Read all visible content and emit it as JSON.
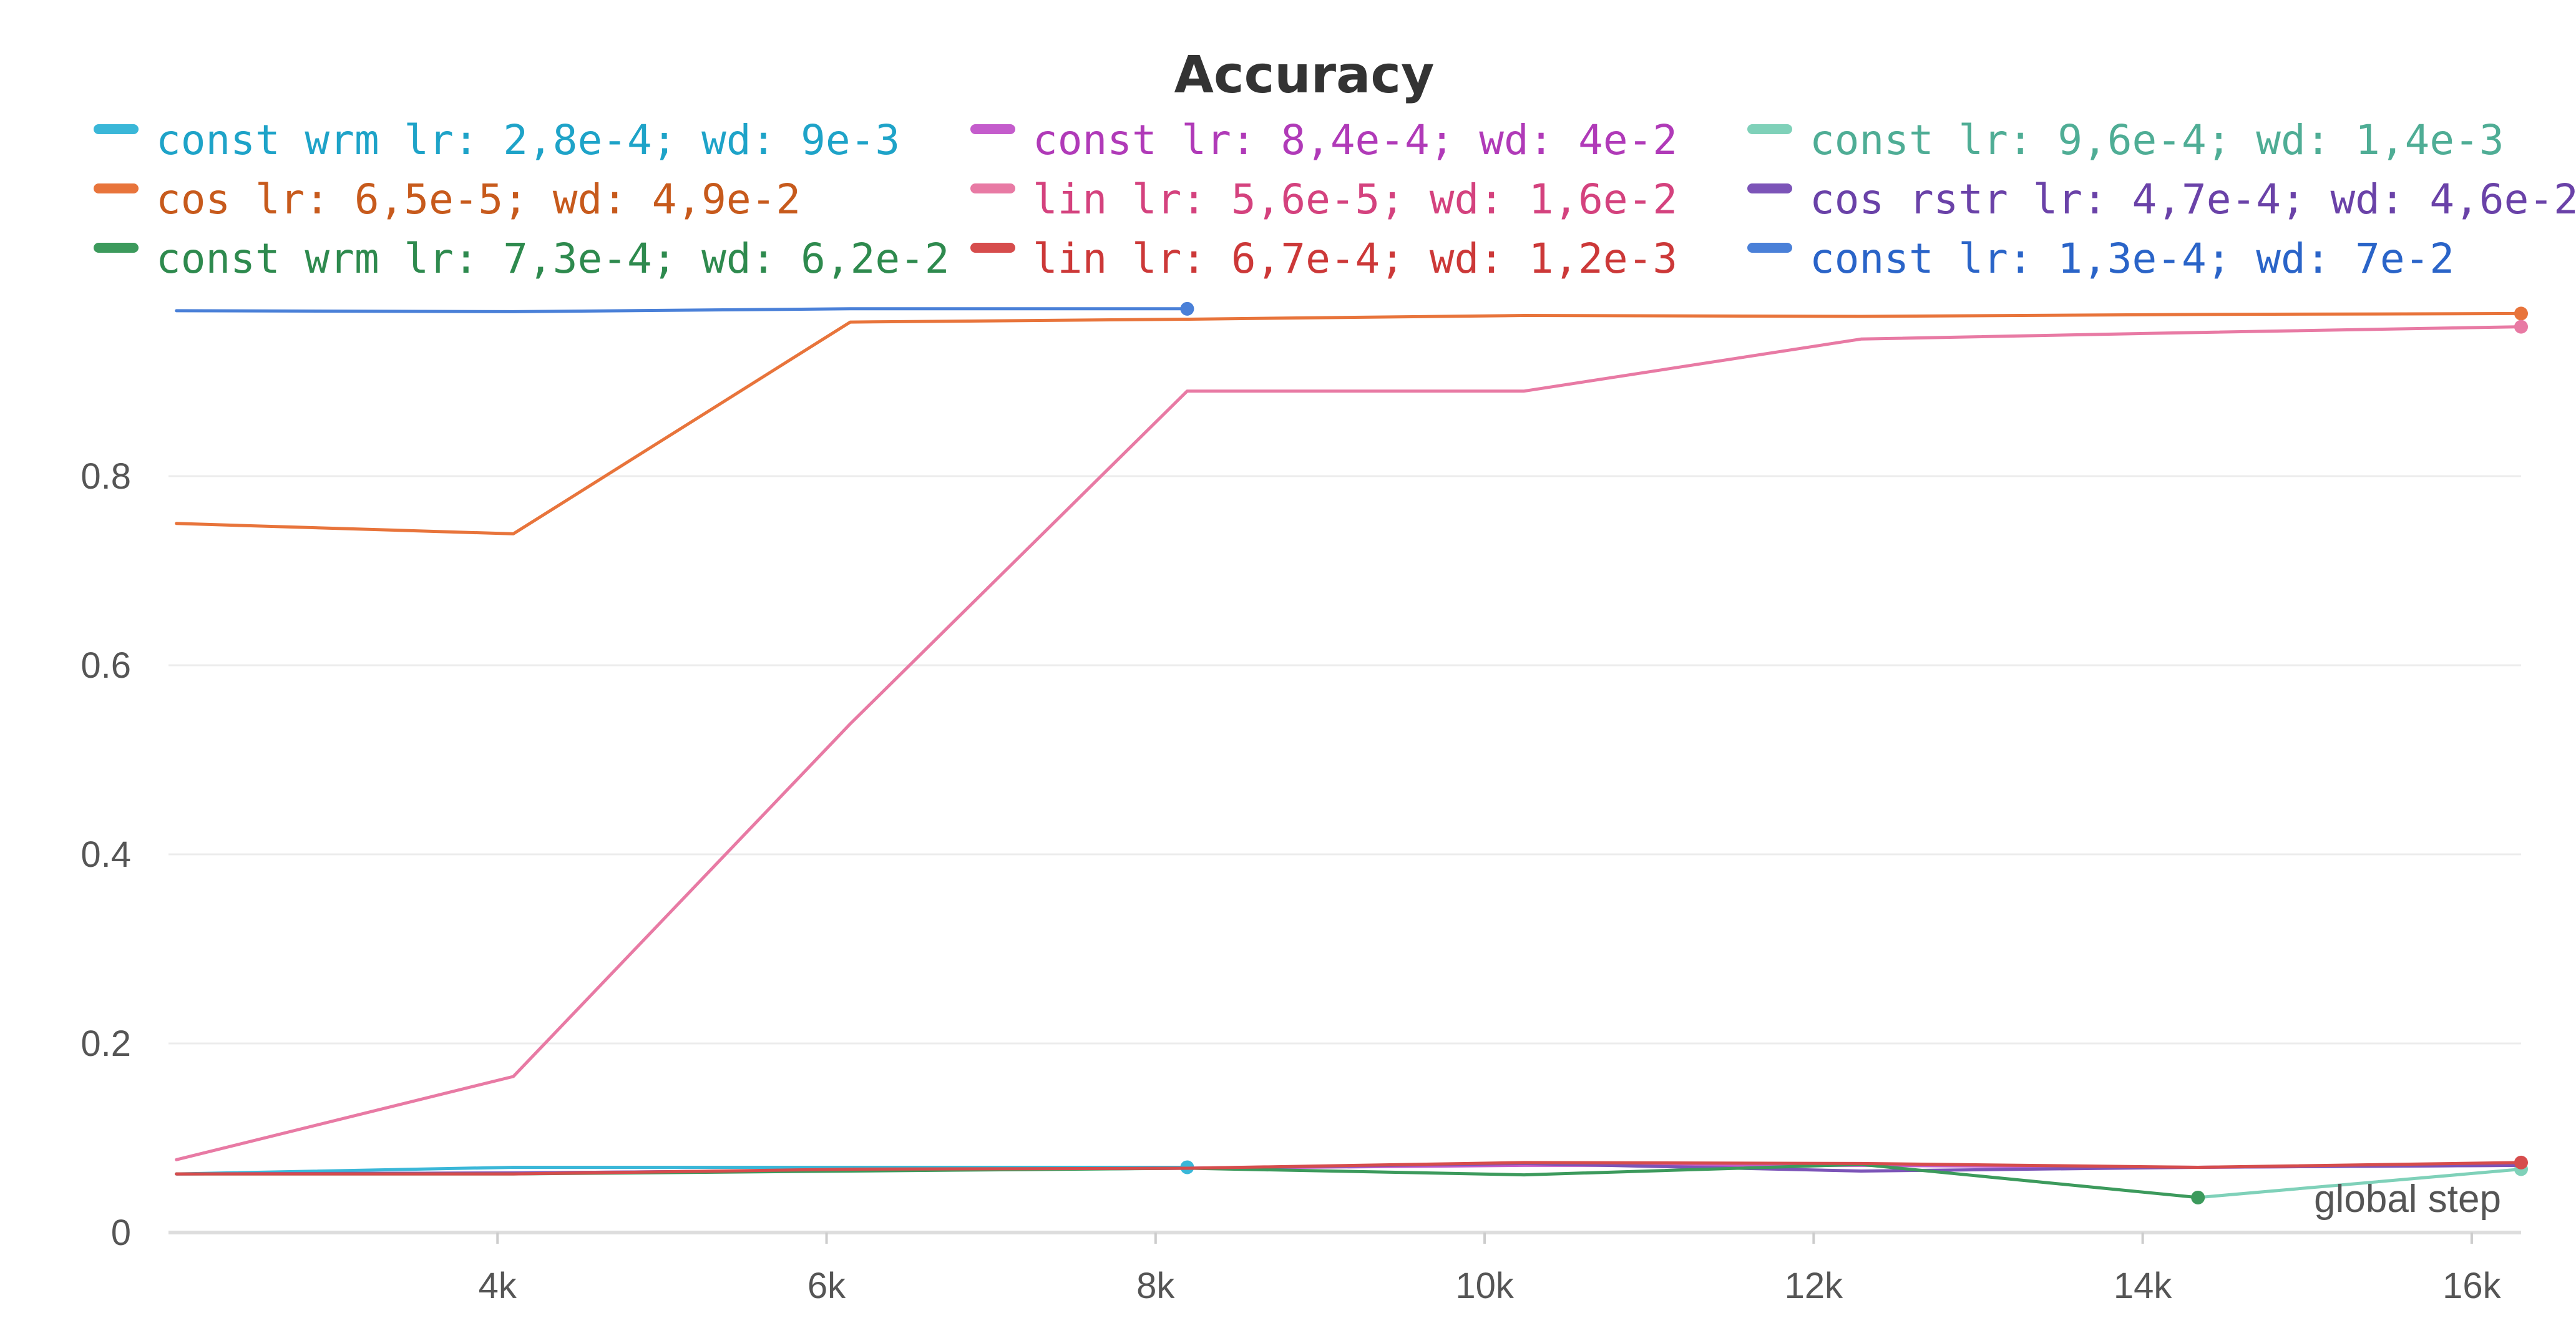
{
  "chart_data": {
    "type": "line",
    "title": "Accuracy",
    "xlabel": "global step",
    "ylabel": "",
    "xlim": [
      2000,
      16300
    ],
    "ylim": [
      0,
      1.0
    ],
    "x_ticks": [
      {
        "value": 4000,
        "label": "4k"
      },
      {
        "value": 6000,
        "label": "6k"
      },
      {
        "value": 8000,
        "label": "8k"
      },
      {
        "value": 10000,
        "label": "10k"
      },
      {
        "value": 12000,
        "label": "12k"
      },
      {
        "value": 14000,
        "label": "14k"
      },
      {
        "value": 16000,
        "label": "16k"
      }
    ],
    "y_ticks": [
      {
        "value": 0,
        "label": "0"
      },
      {
        "value": 0.2,
        "label": "0.2"
      },
      {
        "value": 0.4,
        "label": "0.4"
      },
      {
        "value": 0.6,
        "label": "0.6"
      },
      {
        "value": 0.8,
        "label": "0.8"
      }
    ],
    "grid": true,
    "legend_position": "top",
    "series": [
      {
        "name": "const wrm lr: 2,8e-4; wd: 9e-3",
        "color": "#3ab7d8",
        "text_color": "#1ea3c8",
        "x": [
          2048,
          4096,
          6144,
          8192
        ],
        "y": [
          0.062,
          0.069,
          0.069,
          0.069
        ],
        "end_marker": true
      },
      {
        "name": "const lr: 8,4e-4; wd: 4e-2",
        "color": "#c45ccc",
        "text_color": "#b03ab8",
        "x": [
          2048,
          4096,
          6144,
          8192,
          10240,
          12288,
          14336,
          16300
        ],
        "y": [
          0.062,
          0.063,
          0.066,
          0.068,
          0.071,
          0.071,
          0.069,
          0.071
        ],
        "end_marker": false
      },
      {
        "name": "const lr: 9,6e-4; wd: 1,4e-3",
        "color": "#7fd1b9",
        "text_color": "#4fad95",
        "x": [
          14336,
          16300
        ],
        "y": [
          0.037,
          0.067
        ],
        "end_marker": true
      },
      {
        "name": "cos lr: 6,5e-5; wd: 4,9e-2",
        "color": "#e8743b",
        "text_color": "#c75a1c",
        "x": [
          2048,
          4096,
          6144,
          8192,
          10240,
          12288,
          14336,
          16300
        ],
        "y": [
          0.75,
          0.739,
          0.963,
          0.966,
          0.97,
          0.969,
          0.971,
          0.972
        ],
        "end_marker": true
      },
      {
        "name": "lin lr: 5,6e-5; wd: 1,6e-2",
        "color": "#e87aa4",
        "text_color": "#d4427e",
        "x": [
          2048,
          4096,
          6144,
          8192,
          10240,
          12288,
          14336,
          16300
        ],
        "y": [
          0.077,
          0.165,
          0.538,
          0.89,
          0.89,
          0.945,
          0.952,
          0.958
        ],
        "end_marker": true
      },
      {
        "name": "cos rstr lr: 4,7e-4; wd: 4,6e-2",
        "color": "#7c54b8",
        "text_color": "#6a42a8",
        "x": [
          2048,
          4096,
          6144,
          8192,
          10240,
          12288,
          14336,
          16300
        ],
        "y": [
          0.062,
          0.063,
          0.066,
          0.068,
          0.073,
          0.065,
          0.069,
          0.071
        ],
        "end_marker": false
      },
      {
        "name": "const wrm lr: 7,3e-4; wd: 6,2e-2",
        "color": "#3c9a5c",
        "text_color": "#2e8a4e",
        "x": [
          2048,
          4096,
          6144,
          8192,
          10240,
          12288,
          14336
        ],
        "y": [
          0.062,
          0.062,
          0.065,
          0.068,
          0.061,
          0.072,
          0.037
        ],
        "end_marker": true
      },
      {
        "name": "lin lr: 6,7e-4; wd: 1,2e-3",
        "color": "#d64c4c",
        "text_color": "#cc3838",
        "x": [
          2048,
          4096,
          6144,
          8192,
          10240,
          12288,
          14336,
          16300
        ],
        "y": [
          0.062,
          0.062,
          0.067,
          0.068,
          0.074,
          0.073,
          0.069,
          0.074
        ],
        "end_marker": true
      },
      {
        "name": "const lr: 1,3e-4; wd: 7e-2",
        "color": "#4a80d8",
        "text_color": "#2a64c8",
        "x": [
          2048,
          4096,
          6144,
          8192
        ],
        "y": [
          0.975,
          0.974,
          0.977,
          0.977
        ],
        "end_marker": true
      }
    ]
  }
}
